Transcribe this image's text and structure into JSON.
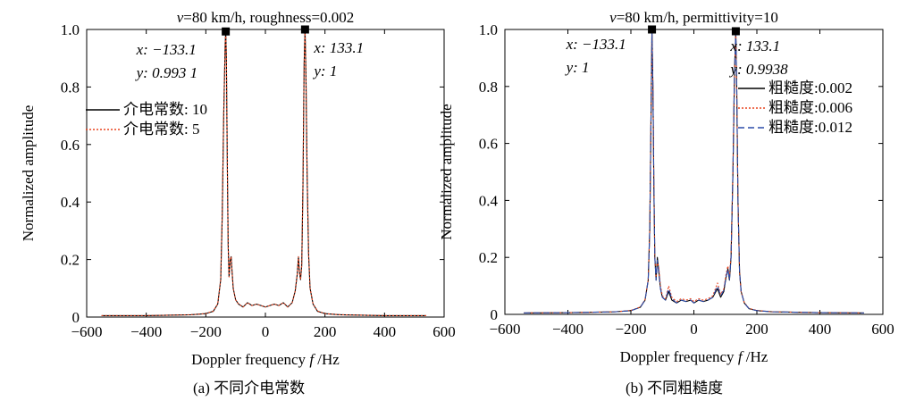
{
  "chart_data": [
    {
      "type": "line",
      "title_italic": "v",
      "title_rest": "=80 km/h, roughness=0.002",
      "xlabel": "Doppler frequency",
      "xlabel_italic": "f",
      "xlabel_unit": "/Hz",
      "ylabel": "Normalized amplitude",
      "xlim": [
        -600,
        600
      ],
      "ylim": [
        0,
        1.0
      ],
      "x_ticks": [
        "−600",
        "−400",
        "−200",
        "0",
        "200",
        "400",
        "600"
      ],
      "y_ticks": [
        "0",
        "0.2",
        "0.4",
        "0.6",
        "0.8",
        "1.0"
      ],
      "legend_position": "left",
      "series": [
        {
          "name": "介电常数: 10",
          "color": "#000000",
          "dash": "solid",
          "points": [
            [
              -550,
              0.005
            ],
            [
              -400,
              0.005
            ],
            [
              -250,
              0.008
            ],
            [
              -200,
              0.012
            ],
            [
              -175,
              0.02
            ],
            [
              -160,
              0.045
            ],
            [
              -150,
              0.13
            ],
            [
              -145,
              0.35
            ],
            [
              -140,
              0.7
            ],
            [
              -135,
              0.95
            ],
            [
              -133.1,
              0.9931
            ],
            [
              -131,
              0.9
            ],
            [
              -128,
              0.55
            ],
            [
              -125,
              0.25
            ],
            [
              -122,
              0.14
            ],
            [
              -118,
              0.2
            ],
            [
              -115,
              0.21
            ],
            [
              -112,
              0.16
            ],
            [
              -108,
              0.1
            ],
            [
              -100,
              0.06
            ],
            [
              -90,
              0.045
            ],
            [
              -75,
              0.035
            ],
            [
              -60,
              0.05
            ],
            [
              -45,
              0.04
            ],
            [
              -30,
              0.045
            ],
            [
              -15,
              0.04
            ],
            [
              0,
              0.035
            ],
            [
              15,
              0.04
            ],
            [
              30,
              0.045
            ],
            [
              45,
              0.04
            ],
            [
              60,
              0.05
            ],
            [
              75,
              0.035
            ],
            [
              90,
              0.05
            ],
            [
              100,
              0.09
            ],
            [
              107,
              0.15
            ],
            [
              111,
              0.21
            ],
            [
              114,
              0.16
            ],
            [
              118,
              0.13
            ],
            [
              122,
              0.18
            ],
            [
              126,
              0.45
            ],
            [
              130,
              0.88
            ],
            [
              133.1,
              1.0
            ],
            [
              136,
              0.85
            ],
            [
              140,
              0.5
            ],
            [
              145,
              0.22
            ],
            [
              150,
              0.1
            ],
            [
              160,
              0.045
            ],
            [
              175,
              0.02
            ],
            [
              200,
              0.012
            ],
            [
              250,
              0.008
            ],
            [
              400,
              0.005
            ],
            [
              540,
              0.005
            ]
          ]
        },
        {
          "name": "介电常数: 5",
          "color": "#e8431f",
          "dash": "dotted",
          "points": [
            [
              -550,
              0.005
            ],
            [
              -400,
              0.005
            ],
            [
              -250,
              0.008
            ],
            [
              -200,
              0.012
            ],
            [
              -175,
              0.021
            ],
            [
              -160,
              0.046
            ],
            [
              -150,
              0.13
            ],
            [
              -145,
              0.35
            ],
            [
              -140,
              0.7
            ],
            [
              -135,
              0.95
            ],
            [
              -133.1,
              0.99
            ],
            [
              -131,
              0.9
            ],
            [
              -128,
              0.55
            ],
            [
              -125,
              0.25
            ],
            [
              -122,
              0.14
            ],
            [
              -118,
              0.2
            ],
            [
              -115,
              0.21
            ],
            [
              -112,
              0.16
            ],
            [
              -108,
              0.1
            ],
            [
              -100,
              0.06
            ],
            [
              -90,
              0.045
            ],
            [
              -75,
              0.035
            ],
            [
              -60,
              0.05
            ],
            [
              -45,
              0.04
            ],
            [
              -30,
              0.045
            ],
            [
              -15,
              0.04
            ],
            [
              0,
              0.035
            ],
            [
              15,
              0.04
            ],
            [
              30,
              0.045
            ],
            [
              45,
              0.04
            ],
            [
              60,
              0.05
            ],
            [
              75,
              0.035
            ],
            [
              90,
              0.05
            ],
            [
              100,
              0.09
            ],
            [
              107,
              0.15
            ],
            [
              111,
              0.21
            ],
            [
              114,
              0.16
            ],
            [
              118,
              0.13
            ],
            [
              122,
              0.18
            ],
            [
              126,
              0.45
            ],
            [
              130,
              0.88
            ],
            [
              133.1,
              1.0
            ],
            [
              136,
              0.85
            ],
            [
              140,
              0.5
            ],
            [
              145,
              0.22
            ],
            [
              150,
              0.1
            ],
            [
              160,
              0.046
            ],
            [
              175,
              0.021
            ],
            [
              200,
              0.012
            ],
            [
              250,
              0.008
            ],
            [
              400,
              0.005
            ],
            [
              540,
              0.005
            ]
          ]
        }
      ],
      "annotations": [
        {
          "x": -133.1,
          "y": 0.9931,
          "label_x": "x: −133.1",
          "label_y": "y: 0.993 1"
        },
        {
          "x": 133.1,
          "y": 1.0,
          "label_x": "x: 133.1",
          "label_y": "y: 1"
        }
      ]
    },
    {
      "type": "line",
      "title_italic": "v",
      "title_rest": "=80 km/h, permittivity=10",
      "xlabel": "Doppler frequency",
      "xlabel_italic": "f",
      "xlabel_unit": "/Hz",
      "ylabel": "Normalized amplitude",
      "xlim": [
        -600,
        600
      ],
      "ylim": [
        0,
        1.0
      ],
      "x_ticks": [
        "−600",
        "−400",
        "−200",
        "0",
        "200",
        "400",
        "600"
      ],
      "y_ticks": [
        "0",
        "0.2",
        "0.4",
        "0.6",
        "0.8",
        "1.0"
      ],
      "legend_position": "right",
      "series": [
        {
          "name": "粗糙度:0.002",
          "color": "#000000",
          "dash": "solid",
          "points": [
            [
              -540,
              0.005
            ],
            [
              -400,
              0.006
            ],
            [
              -250,
              0.009
            ],
            [
              -200,
              0.013
            ],
            [
              -170,
              0.025
            ],
            [
              -155,
              0.05
            ],
            [
              -145,
              0.12
            ],
            [
              -140,
              0.3
            ],
            [
              -136,
              0.7
            ],
            [
              -133.1,
              1.0
            ],
            [
              -130,
              0.8
            ],
            [
              -127,
              0.45
            ],
            [
              -124,
              0.2
            ],
            [
              -120,
              0.12
            ],
            [
              -116,
              0.2
            ],
            [
              -112,
              0.16
            ],
            [
              -106,
              0.09
            ],
            [
              -100,
              0.06
            ],
            [
              -90,
              0.05
            ],
            [
              -80,
              0.08
            ],
            [
              -70,
              0.05
            ],
            [
              -55,
              0.04
            ],
            [
              -40,
              0.05
            ],
            [
              -25,
              0.045
            ],
            [
              -10,
              0.05
            ],
            [
              0,
              0.04
            ],
            [
              15,
              0.05
            ],
            [
              30,
              0.045
            ],
            [
              45,
              0.05
            ],
            [
              60,
              0.06
            ],
            [
              75,
              0.09
            ],
            [
              85,
              0.06
            ],
            [
              95,
              0.08
            ],
            [
              102,
              0.13
            ],
            [
              108,
              0.16
            ],
            [
              113,
              0.12
            ],
            [
              118,
              0.2
            ],
            [
              124,
              0.5
            ],
            [
              129,
              0.85
            ],
            [
              133.1,
              0.9938
            ],
            [
              136,
              0.8
            ],
            [
              140,
              0.4
            ],
            [
              145,
              0.15
            ],
            [
              150,
              0.08
            ],
            [
              160,
              0.04
            ],
            [
              175,
              0.02
            ],
            [
              200,
              0.013
            ],
            [
              250,
              0.009
            ],
            [
              400,
              0.006
            ],
            [
              540,
              0.005
            ]
          ]
        },
        {
          "name": "粗糙度:0.006",
          "color": "#e8431f",
          "dash": "dotted",
          "points": [
            [
              -540,
              0.005
            ],
            [
              -400,
              0.006
            ],
            [
              -250,
              0.009
            ],
            [
              -200,
              0.014
            ],
            [
              -170,
              0.026
            ],
            [
              -155,
              0.052
            ],
            [
              -145,
              0.12
            ],
            [
              -140,
              0.3
            ],
            [
              -136,
              0.7
            ],
            [
              -133.1,
              0.99
            ],
            [
              -130,
              0.8
            ],
            [
              -127,
              0.45
            ],
            [
              -124,
              0.2
            ],
            [
              -120,
              0.13
            ],
            [
              -116,
              0.18
            ],
            [
              -112,
              0.17
            ],
            [
              -106,
              0.1
            ],
            [
              -100,
              0.065
            ],
            [
              -90,
              0.055
            ],
            [
              -80,
              0.1
            ],
            [
              -70,
              0.06
            ],
            [
              -55,
              0.045
            ],
            [
              -40,
              0.055
            ],
            [
              -25,
              0.05
            ],
            [
              -10,
              0.055
            ],
            [
              0,
              0.045
            ],
            [
              15,
              0.055
            ],
            [
              30,
              0.05
            ],
            [
              45,
              0.055
            ],
            [
              60,
              0.065
            ],
            [
              75,
              0.11
            ],
            [
              85,
              0.07
            ],
            [
              95,
              0.09
            ],
            [
              102,
              0.14
            ],
            [
              108,
              0.17
            ],
            [
              113,
              0.13
            ],
            [
              118,
              0.21
            ],
            [
              124,
              0.5
            ],
            [
              129,
              0.85
            ],
            [
              133.1,
              0.99
            ],
            [
              136,
              0.8
            ],
            [
              140,
              0.4
            ],
            [
              145,
              0.15
            ],
            [
              150,
              0.08
            ],
            [
              160,
              0.042
            ],
            [
              175,
              0.021
            ],
            [
              200,
              0.014
            ],
            [
              250,
              0.009
            ],
            [
              400,
              0.006
            ],
            [
              540,
              0.005
            ]
          ]
        },
        {
          "name": "粗糙度:0.012",
          "color": "#2b4ba8",
          "dash": "dashed",
          "points": [
            [
              -540,
              0.005
            ],
            [
              -400,
              0.006
            ],
            [
              -250,
              0.009
            ],
            [
              -200,
              0.013
            ],
            [
              -170,
              0.025
            ],
            [
              -155,
              0.05
            ],
            [
              -145,
              0.12
            ],
            [
              -140,
              0.3
            ],
            [
              -136,
              0.7
            ],
            [
              -133.1,
              0.99
            ],
            [
              -130,
              0.8
            ],
            [
              -127,
              0.45
            ],
            [
              -124,
              0.2
            ],
            [
              -120,
              0.12
            ],
            [
              -116,
              0.19
            ],
            [
              -112,
              0.15
            ],
            [
              -106,
              0.09
            ],
            [
              -100,
              0.06
            ],
            [
              -90,
              0.05
            ],
            [
              -80,
              0.09
            ],
            [
              -70,
              0.055
            ],
            [
              -55,
              0.04
            ],
            [
              -40,
              0.05
            ],
            [
              -25,
              0.045
            ],
            [
              -10,
              0.05
            ],
            [
              0,
              0.04
            ],
            [
              15,
              0.05
            ],
            [
              30,
              0.045
            ],
            [
              45,
              0.05
            ],
            [
              60,
              0.06
            ],
            [
              75,
              0.1
            ],
            [
              85,
              0.065
            ],
            [
              95,
              0.085
            ],
            [
              102,
              0.13
            ],
            [
              108,
              0.16
            ],
            [
              113,
              0.12
            ],
            [
              118,
              0.2
            ],
            [
              124,
              0.5
            ],
            [
              129,
              0.85
            ],
            [
              133.1,
              0.99
            ],
            [
              136,
              0.8
            ],
            [
              140,
              0.4
            ],
            [
              145,
              0.15
            ],
            [
              150,
              0.08
            ],
            [
              160,
              0.04
            ],
            [
              175,
              0.02
            ],
            [
              200,
              0.013
            ],
            [
              250,
              0.009
            ],
            [
              400,
              0.006
            ],
            [
              540,
              0.005
            ]
          ]
        }
      ],
      "annotations": [
        {
          "x": -133.1,
          "y": 1.0,
          "label_x": "x: −133.1",
          "label_y": "y: 1"
        },
        {
          "x": 133.1,
          "y": 0.9938,
          "label_x": "x: 133.1",
          "label_y": "y: 0.9938"
        }
      ]
    }
  ],
  "captions": {
    "a": "(a) 不同介电常数",
    "b": "(b) 不同粗糙度"
  }
}
